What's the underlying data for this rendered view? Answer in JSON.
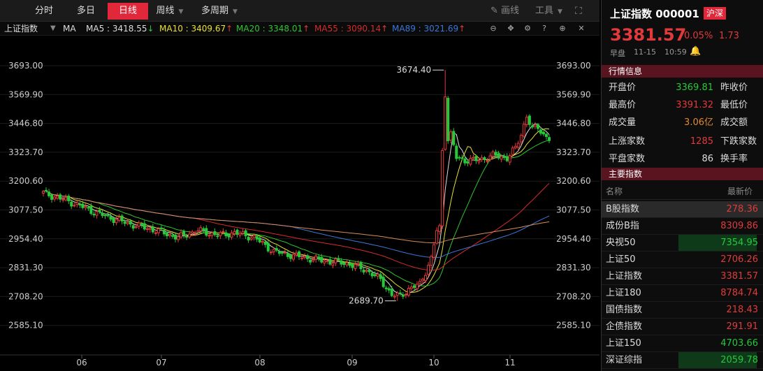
{
  "toolbar": {
    "tabs": [
      {
        "label": "分时",
        "active": false
      },
      {
        "label": "多日",
        "active": false
      },
      {
        "label": "日线",
        "active": true
      },
      {
        "label": "周线",
        "active": false
      },
      {
        "label": "多周期",
        "active": false
      }
    ],
    "draw_label": "画线",
    "tools_label": "工具"
  },
  "ma_bar": {
    "index_name": "上证指数",
    "ma_label": "MA",
    "ma5": "MA5 : 3418.55",
    "ma10": "MA10 : 3409.67",
    "ma20": "MA20 : 3348.01",
    "ma55": "MA55 : 3090.14",
    "ma89": "MA89 : 3021.69",
    "colors": {
      "ma5": "#dddddd",
      "ma10": "#e8e030",
      "ma20": "#2fc52f",
      "ma55": "#d62b2b",
      "ma89": "#3a78d8",
      "ma250": "#d98c55"
    }
  },
  "chart_data": {
    "type": "candlestick",
    "y_ticks": [
      "3693.00",
      "3569.90",
      "3446.80",
      "3323.70",
      "3200.60",
      "3077.50",
      "2954.40",
      "2831.30",
      "2708.20",
      "2585.10"
    ],
    "x_labels": [
      "06",
      "07",
      "08",
      "09",
      "10",
      "11"
    ],
    "annotations": [
      {
        "text": "3674.40",
        "type": "high"
      },
      {
        "text": "2689.70",
        "type": "low"
      }
    ],
    "up_color": "#e23a3a",
    "down_color": "#26c93a",
    "ylim": [
      2585.1,
      3693.0
    ]
  },
  "quote": {
    "title": "上证指数 000001",
    "market_badge": "沪深",
    "price": "3381.57",
    "change_pct": "0.05%",
    "change": "1.73",
    "session": "早盘",
    "date": "11-15",
    "time": "10:59"
  },
  "market_info": {
    "heading": "行情信息",
    "rows": [
      {
        "label": "开盘价",
        "value": "3369.81",
        "color": "#26c93a",
        "label2": "昨收价"
      },
      {
        "label": "最高价",
        "value": "3391.32",
        "color": "#e23a3a",
        "label2": "最低价"
      },
      {
        "label": "成交量",
        "value": "3.06亿",
        "color": "#e08a30",
        "label2": "成交额"
      },
      {
        "label": "上涨家数",
        "value": "1285",
        "color": "#e23a3a",
        "label2": "下跌家数"
      },
      {
        "label": "平盘家数",
        "value": "86",
        "color": "#dddddd",
        "label2": "换手率"
      }
    ]
  },
  "indices": {
    "heading": "主要指数",
    "col_name": "名称",
    "col_price": "最新价",
    "rows": [
      {
        "name": "B股指数",
        "value": "278.36",
        "color": "#e23a3a",
        "bg": "#2a2a2a"
      },
      {
        "name": "成份B指",
        "value": "8309.86",
        "color": "#e23a3a",
        "bg": ""
      },
      {
        "name": "央视50",
        "value": "7354.95",
        "color": "#26c93a",
        "bg": "#0e3a1a"
      },
      {
        "name": "上证50",
        "value": "2706.26",
        "color": "#e23a3a",
        "bg": ""
      },
      {
        "name": "上证指数",
        "value": "3381.57",
        "color": "#e23a3a",
        "bg": ""
      },
      {
        "name": "上证180",
        "value": "8784.74",
        "color": "#e23a3a",
        "bg": ""
      },
      {
        "name": "国债指数",
        "value": "218.43",
        "color": "#e23a3a",
        "bg": ""
      },
      {
        "name": "企债指数",
        "value": "291.91",
        "color": "#e23a3a",
        "bg": ""
      },
      {
        "name": "上证150",
        "value": "4703.66",
        "color": "#26c93a",
        "bg": ""
      },
      {
        "name": "深证综指",
        "value": "2059.78",
        "color": "#26c93a",
        "bg": "#0e3a1a"
      }
    ]
  }
}
